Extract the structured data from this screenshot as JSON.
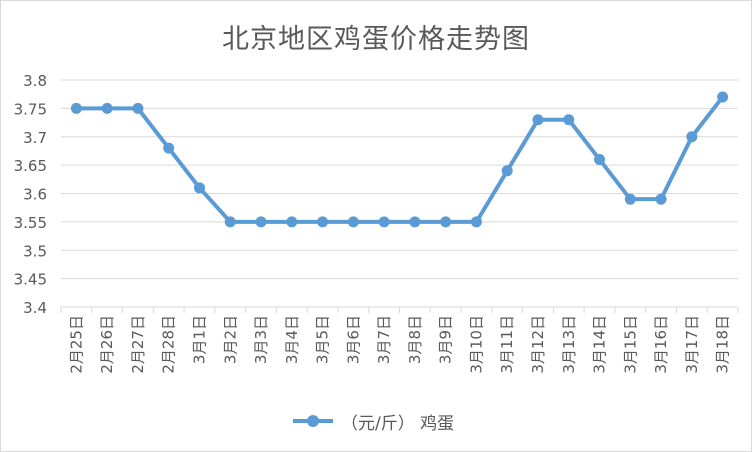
{
  "chart_data": {
    "type": "line",
    "title": "北京地区鸡蛋价格走势图",
    "categories": [
      "2月25日",
      "2月26日",
      "2月27日",
      "2月28日",
      "3月1日",
      "3月2日",
      "3月3日",
      "3月4日",
      "3月5日",
      "3月6日",
      "3月7日",
      "3月8日",
      "3月9日",
      "3月10日",
      "3月11日",
      "3月12日",
      "3月13日",
      "3月14日",
      "3月15日",
      "3月16日",
      "3月17日",
      "3月18日"
    ],
    "series": [
      {
        "name": "（元/斤） 鸡蛋",
        "values": [
          3.75,
          3.75,
          3.75,
          3.68,
          3.61,
          3.55,
          3.55,
          3.55,
          3.55,
          3.55,
          3.55,
          3.55,
          3.55,
          3.55,
          3.64,
          3.73,
          3.73,
          3.66,
          3.59,
          3.59,
          3.7,
          3.77
        ]
      }
    ],
    "ylim": [
      3.4,
      3.8
    ],
    "yticks": [
      "3.4",
      "3.45",
      "3.5",
      "3.55",
      "3.6",
      "3.65",
      "3.7",
      "3.75",
      "3.8"
    ],
    "grid": true,
    "legend": "bottom",
    "color": "#5b9bd5"
  }
}
